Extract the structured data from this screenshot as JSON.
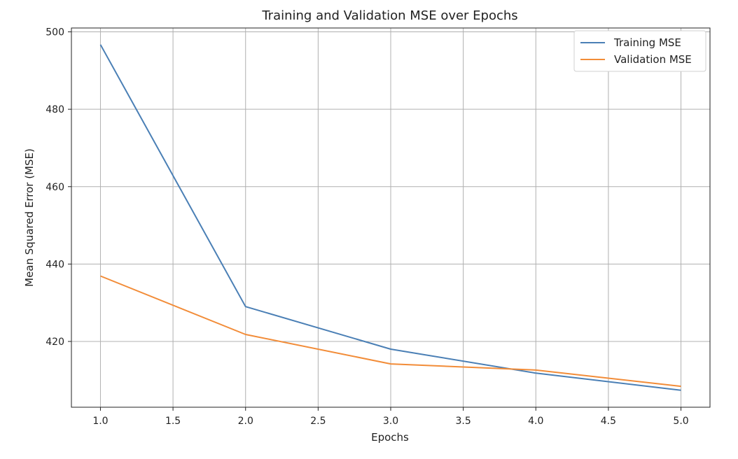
{
  "chart_data": {
    "type": "line",
    "title": "Training and Validation MSE over Epochs",
    "xlabel": "Epochs",
    "ylabel": "Mean Squared Error (MSE)",
    "x": [
      1,
      2,
      3,
      4,
      5
    ],
    "series": [
      {
        "name": "Training MSE",
        "values": [
          496.7,
          429.0,
          418.0,
          411.8,
          407.4
        ],
        "color": "#4a7fb5"
      },
      {
        "name": "Validation MSE",
        "values": [
          436.9,
          421.8,
          414.2,
          412.6,
          408.4
        ],
        "color": "#f28c38"
      }
    ],
    "xticks": [
      "1.0",
      "1.5",
      "2.0",
      "2.5",
      "3.0",
      "3.5",
      "4.0",
      "4.5",
      "5.0"
    ],
    "yticks": [
      "420",
      "440",
      "460",
      "480",
      "500"
    ],
    "xlim": [
      0.8,
      5.2
    ],
    "ylim": [
      403,
      501
    ],
    "grid": true,
    "legend": "upper right"
  }
}
